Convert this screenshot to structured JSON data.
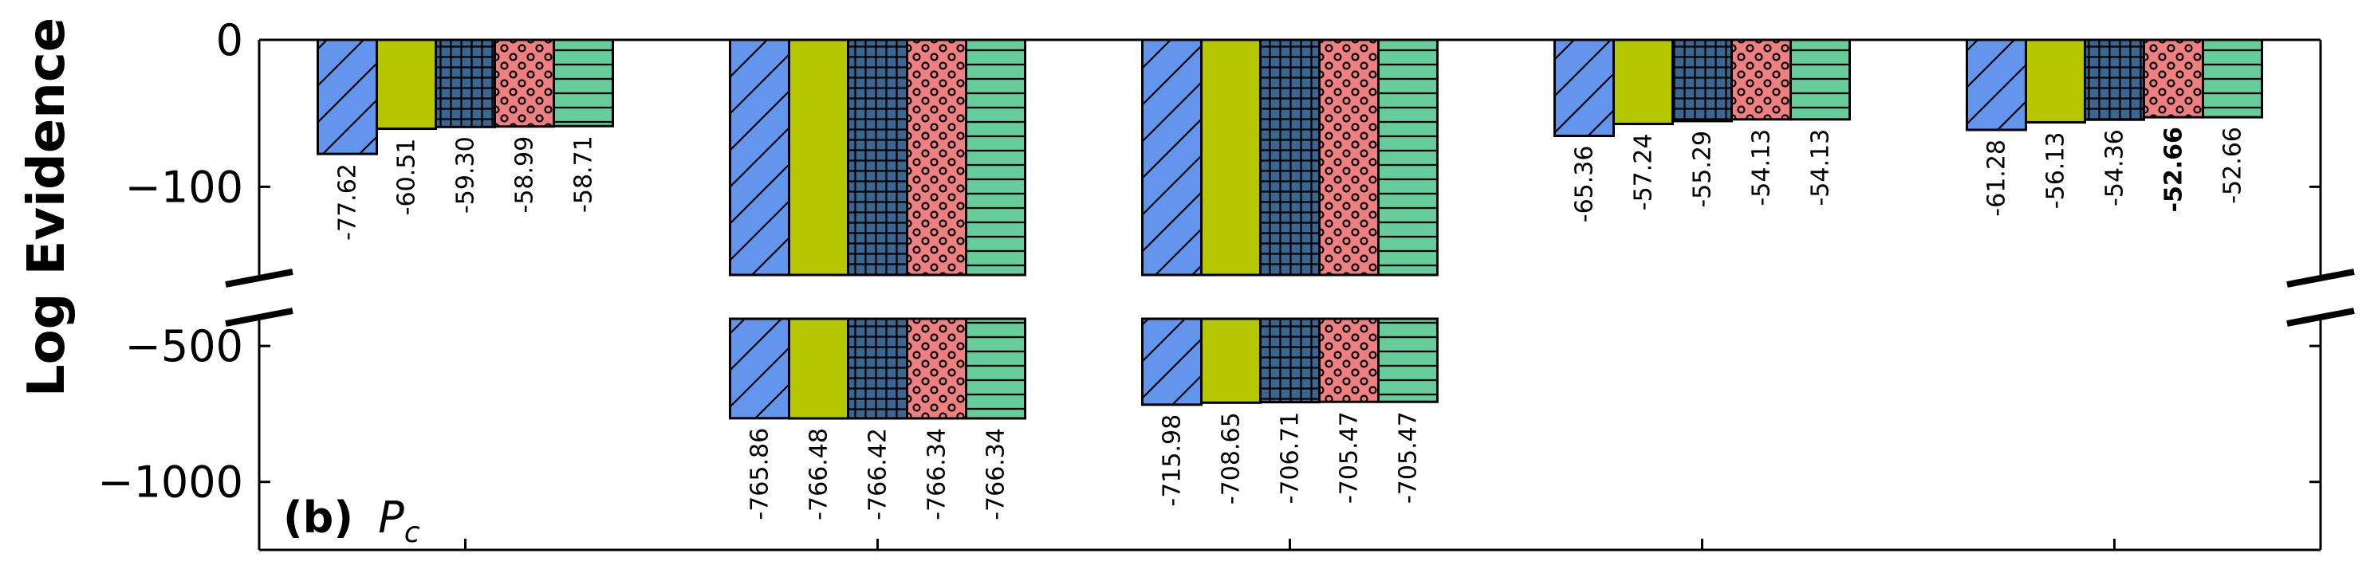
{
  "chart_data": {
    "type": "bar",
    "panel_label": "(b)",
    "panel_symbol": "P",
    "panel_symbol_sub": "c",
    "ylabel": "Log Evidence",
    "axis_break": true,
    "ylim_upper_segment": [
      -160,
      0
    ],
    "ylim_lower_segment": [
      -1250,
      -400
    ],
    "yticks": [
      0,
      -100,
      -500,
      -1000
    ],
    "ytick_labels": [
      "0",
      "−100",
      "−500",
      "−1000"
    ],
    "grid": false,
    "groups": [
      {
        "bars": [
          {
            "value": -77.62,
            "label": "-77.62",
            "bold": false
          },
          {
            "value": -60.51,
            "label": "-60.51",
            "bold": false
          },
          {
            "value": -59.3,
            "label": "-59.30",
            "bold": false
          },
          {
            "value": -58.99,
            "label": "-58.99",
            "bold": false
          },
          {
            "value": -58.71,
            "label": "-58.71",
            "bold": false
          }
        ]
      },
      {
        "bars": [
          {
            "value": -765.86,
            "label": "-765.86",
            "bold": false
          },
          {
            "value": -766.48,
            "label": "-766.48",
            "bold": false
          },
          {
            "value": -766.42,
            "label": "-766.42",
            "bold": false
          },
          {
            "value": -766.34,
            "label": "-766.34",
            "bold": false
          },
          {
            "value": -766.34,
            "label": "-766.34",
            "bold": false
          }
        ]
      },
      {
        "bars": [
          {
            "value": -715.98,
            "label": "-715.98",
            "bold": false
          },
          {
            "value": -708.65,
            "label": "-708.65",
            "bold": false
          },
          {
            "value": -706.71,
            "label": "-706.71",
            "bold": false
          },
          {
            "value": -705.47,
            "label": "-705.47",
            "bold": false
          },
          {
            "value": -705.47,
            "label": "-705.47",
            "bold": false
          }
        ]
      },
      {
        "bars": [
          {
            "value": -65.36,
            "label": "-65.36",
            "bold": false
          },
          {
            "value": -57.24,
            "label": "-57.24",
            "bold": false
          },
          {
            "value": -55.29,
            "label": "-55.29",
            "bold": false
          },
          {
            "value": -54.13,
            "label": "-54.13",
            "bold": false
          },
          {
            "value": -54.13,
            "label": "-54.13",
            "bold": false
          }
        ]
      },
      {
        "bars": [
          {
            "value": -61.28,
            "label": "-61.28",
            "bold": false
          },
          {
            "value": -56.13,
            "label": "-56.13",
            "bold": false
          },
          {
            "value": -54.36,
            "label": "-54.36",
            "bold": false
          },
          {
            "value": -52.66,
            "label": "-52.66",
            "bold": true
          },
          {
            "value": -52.66,
            "label": "-52.66",
            "bold": false
          }
        ]
      }
    ],
    "series_styles": [
      {
        "color": "#6495ED",
        "pattern": "diagonal-hatch"
      },
      {
        "color": "#B5C700",
        "pattern": "solid"
      },
      {
        "color": "#3A6690",
        "pattern": "grid-hatch"
      },
      {
        "color": "#F08080",
        "pattern": "circles"
      },
      {
        "color": "#66CC99",
        "pattern": "horizontal-hatch"
      }
    ]
  }
}
